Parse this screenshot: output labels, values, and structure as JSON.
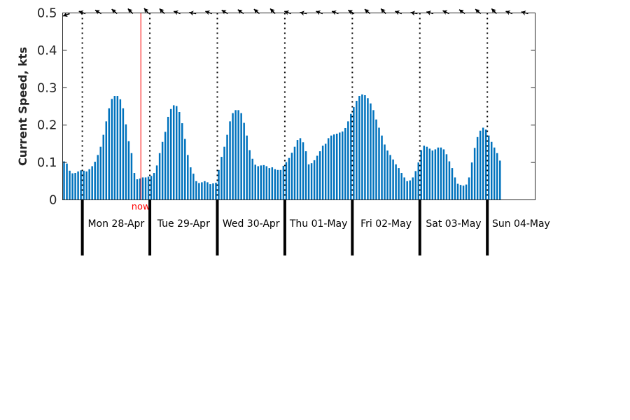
{
  "chart_data": {
    "type": "bar",
    "ylabel": "Current Speed, kts",
    "ylim": [
      0,
      0.5
    ],
    "yticks": [
      "0",
      "0.1",
      "0.2",
      "0.3",
      "0.4",
      "0.5"
    ],
    "grid": false,
    "legend": "none",
    "bar_color": "#0072bd",
    "now_color": "#ff0000",
    "now_label": "now",
    "now_hours": 20.8,
    "days": [
      {
        "label": "Mon 28-Apr",
        "start_hour": 0
      },
      {
        "label": "Tue 29-Apr",
        "start_hour": 24
      },
      {
        "label": "Wed 30-Apr",
        "start_hour": 48
      },
      {
        "label": "Thu 01-May",
        "start_hour": 72
      },
      {
        "label": "Fri 02-May",
        "start_hour": 96
      },
      {
        "label": "Sat 03-May",
        "start_hour": 120
      },
      {
        "label": "Sun 04-May",
        "start_hour": 144
      }
    ],
    "x_range_hours": [
      -7,
      161
    ],
    "hourly_speed": [
      0.103,
      0.097,
      0.078,
      0.071,
      0.072,
      0.076,
      0.079,
      0.078,
      0.076,
      0.082,
      0.09,
      0.102,
      0.12,
      0.142,
      0.174,
      0.21,
      0.245,
      0.27,
      0.278,
      0.278,
      0.269,
      0.245,
      0.202,
      0.157,
      0.125,
      0.072,
      0.055,
      0.057,
      0.06,
      0.06,
      0.062,
      0.064,
      0.072,
      0.092,
      0.125,
      0.155,
      0.182,
      0.222,
      0.243,
      0.253,
      0.251,
      0.235,
      0.205,
      0.163,
      0.12,
      0.087,
      0.07,
      0.05,
      0.045,
      0.047,
      0.05,
      0.047,
      0.042,
      0.044,
      0.046,
      0.08,
      0.115,
      0.142,
      0.174,
      0.21,
      0.232,
      0.24,
      0.24,
      0.232,
      0.206,
      0.172,
      0.133,
      0.11,
      0.094,
      0.09,
      0.092,
      0.093,
      0.09,
      0.085,
      0.087,
      0.082,
      0.08,
      0.08,
      0.091,
      0.101,
      0.112,
      0.126,
      0.142,
      0.16,
      0.165,
      0.154,
      0.13,
      0.095,
      0.098,
      0.106,
      0.118,
      0.13,
      0.145,
      0.15,
      0.165,
      0.172,
      0.175,
      0.177,
      0.18,
      0.183,
      0.192,
      0.21,
      0.23,
      0.248,
      0.265,
      0.278,
      0.282,
      0.28,
      0.272,
      0.258,
      0.24,
      0.215,
      0.193,
      0.172,
      0.148,
      0.132,
      0.12,
      0.108,
      0.095,
      0.085,
      0.072,
      0.06,
      0.05,
      0.052,
      0.06,
      0.077,
      0.1,
      0.133,
      0.145,
      0.142,
      0.137,
      0.132,
      0.135,
      0.14,
      0.14,
      0.135,
      0.122,
      0.103,
      0.085,
      0.06,
      0.043,
      0.04,
      0.038,
      0.041,
      0.06,
      0.1,
      0.139,
      0.168,
      0.185,
      0.193,
      0.188,
      0.172,
      0.155,
      0.14,
      0.125,
      0.105
    ],
    "direction_arrows_deg": [
      160,
      200,
      210,
      220,
      225,
      230,
      225,
      200,
      190,
      200,
      210,
      215,
      220,
      225,
      200,
      190,
      200,
      200,
      210,
      220,
      225,
      200,
      190,
      195,
      205,
      215,
      220,
      225,
      200,
      195
    ]
  }
}
